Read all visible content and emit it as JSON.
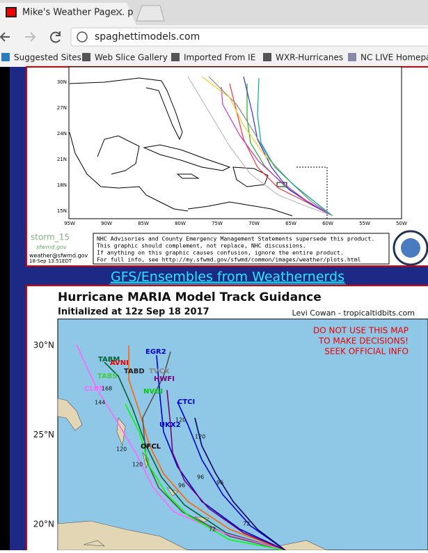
{
  "browser": {
    "tab_title": "Mike's Weather Page... p",
    "url": "spaghettimodels.com",
    "bookmarks": [
      "Suggested Sites",
      "Web Slice Gallery",
      "Imported From IE",
      "WXR-Hurricanes",
      "NC LIVE Homepa"
    ]
  },
  "sfwmd_map": {
    "lat_labels": [
      "30N",
      "27N",
      "24N",
      "21N",
      "18N",
      "15N"
    ],
    "lon_labels": [
      "95W",
      "90W",
      "85W",
      "80W",
      "75W",
      "70W",
      "65W",
      "60W",
      "55W",
      "50W"
    ],
    "storm": "storm_15",
    "logo_text": "sfwmd.gov",
    "email": "weather@sfwmd.gov",
    "timestamp": "18-Sep 13:51EDT",
    "disclaimer": [
      "NHC Advisories and County Emergency Management Statements supersede this product.",
      "This graphic should complement, not replace, NHC discussions.",
      "If anything on this graphic causes confusion, ignore the entire product.",
      "For full info, see  http://my.sfwmd.gov/sfwmd/common/images/weather/plots.html"
    ]
  },
  "link": "GFS/Ensembles from Weathernerds",
  "guidance_map": {
    "title": "Hurricane MARIA Model Track Guidance",
    "initialized": "Initialized at 12z Sep 18 2017",
    "credit": "Levi Cowan - tropicaltidbits.com",
    "warning": [
      "DO NOT USE THIS MAP",
      "TO MAKE DECISIONS!",
      "SEEK OFFICIAL INFO"
    ],
    "lat_labels": [
      "30°N",
      "25°N",
      "20°N"
    ],
    "models": [
      "TABM",
      "AVNI",
      "TABD",
      "TABS",
      "CLP5",
      "EGR2",
      "TVCX",
      "HWFI",
      "NVGI",
      "CTCI",
      "UKX2",
      "OFCL"
    ],
    "hours": [
      "144",
      "168",
      "120",
      "120",
      "120",
      "120",
      "96",
      "96",
      "96",
      "72",
      "72"
    ]
  }
}
